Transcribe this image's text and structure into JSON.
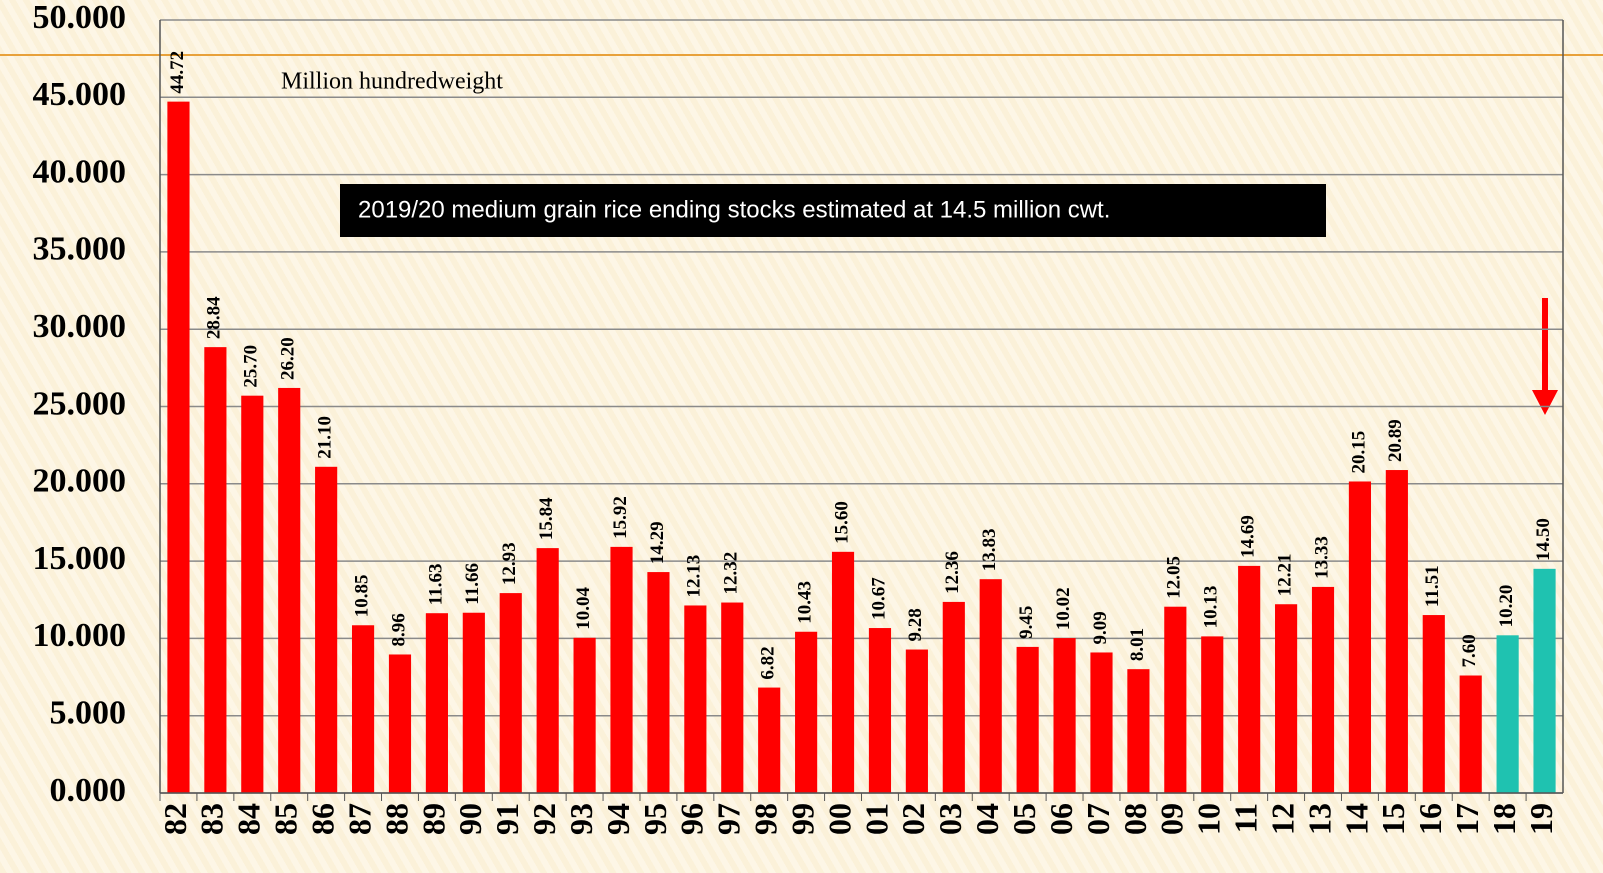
{
  "chart_data": {
    "type": "bar",
    "annotations": [
      "Million hundredweight",
      "2019/20 medium grain rice ending stocks estimated at 14.5 million cwt."
    ],
    "categories": [
      "82",
      "83",
      "84",
      "85",
      "86",
      "87",
      "88",
      "89",
      "90",
      "91",
      "92",
      "93",
      "94",
      "95",
      "96",
      "97",
      "98",
      "99",
      "00",
      "01",
      "02",
      "03",
      "04",
      "05",
      "06",
      "07",
      "08",
      "09",
      "10",
      "11",
      "12",
      "13",
      "14",
      "15",
      "16",
      "17",
      "18",
      "19"
    ],
    "values": [
      44.72,
      28.84,
      25.7,
      26.2,
      21.1,
      10.85,
      8.96,
      11.63,
      11.66,
      12.93,
      15.84,
      10.04,
      15.92,
      14.29,
      12.13,
      12.32,
      6.82,
      10.43,
      15.6,
      10.67,
      9.28,
      12.36,
      13.83,
      9.45,
      10.02,
      9.09,
      8.01,
      12.05,
      10.13,
      14.69,
      12.21,
      13.33,
      20.15,
      20.89,
      11.51,
      7.6,
      10.2,
      14.5
    ],
    "value_labels": [
      "44.72",
      "28.84",
      "25.70",
      "26.20",
      "21.10",
      "10.85",
      "8.96",
      "11.63",
      "11.66",
      "12.93",
      "15.84",
      "10.04",
      "15.92",
      "14.29",
      "12.13",
      "12.32",
      "6.82",
      "10.43",
      "15.60",
      "10.67",
      "9.28",
      "12.36",
      "13.83",
      "9.45",
      "10.02",
      "9.09",
      "8.01",
      "12.05",
      "10.13",
      "14.69",
      "12.21",
      "13.33",
      "20.15",
      "20.89",
      "11.51",
      "7.60",
      "10.20",
      "14.50"
    ],
    "colors": [
      "#ff0000",
      "#ff0000",
      "#ff0000",
      "#ff0000",
      "#ff0000",
      "#ff0000",
      "#ff0000",
      "#ff0000",
      "#ff0000",
      "#ff0000",
      "#ff0000",
      "#ff0000",
      "#ff0000",
      "#ff0000",
      "#ff0000",
      "#ff0000",
      "#ff0000",
      "#ff0000",
      "#ff0000",
      "#ff0000",
      "#ff0000",
      "#ff0000",
      "#ff0000",
      "#ff0000",
      "#ff0000",
      "#ff0000",
      "#ff0000",
      "#ff0000",
      "#ff0000",
      "#ff0000",
      "#ff0000",
      "#ff0000",
      "#ff0000",
      "#ff0000",
      "#ff0000",
      "#ff0000",
      "#1fc2b0",
      "#1fc2b0"
    ],
    "ylim": [
      0,
      50
    ],
    "yticks": [
      {
        "value": 0,
        "label": "0.000"
      },
      {
        "value": 5,
        "label": "5.000"
      },
      {
        "value": 10,
        "label": "10.000"
      },
      {
        "value": 15,
        "label": "15.000"
      },
      {
        "value": 20,
        "label": "20.000"
      },
      {
        "value": 25,
        "label": "25.000"
      },
      {
        "value": 30,
        "label": "30.000"
      },
      {
        "value": 35,
        "label": "35.000"
      },
      {
        "value": 40,
        "label": "40.000"
      },
      {
        "value": 45,
        "label": "45.000"
      },
      {
        "value": 50,
        "label": "50.000"
      }
    ],
    "grid": true
  }
}
